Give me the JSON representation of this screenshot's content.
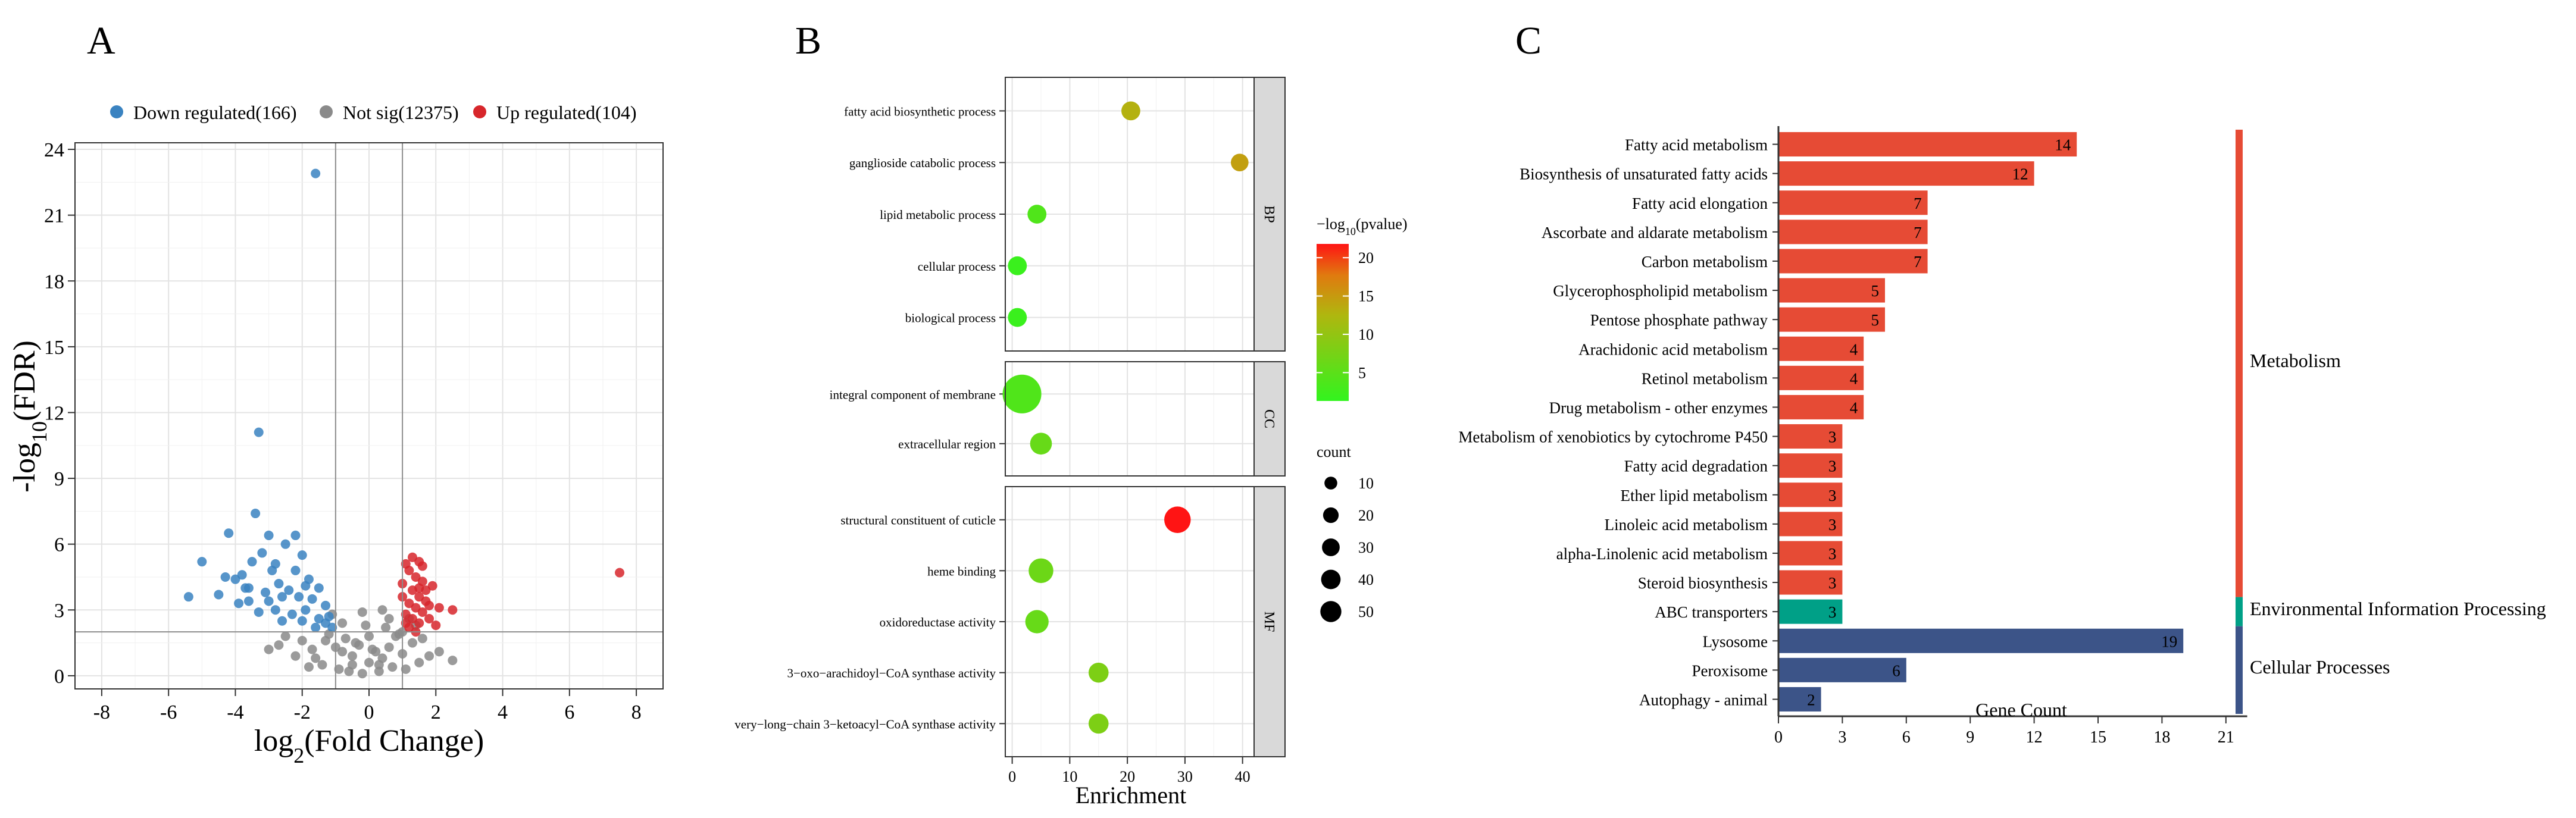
{
  "panels": {
    "A": {
      "letter": "A"
    },
    "B": {
      "letter": "B"
    },
    "C": {
      "letter": "C"
    }
  },
  "chart_data": [
    {
      "type": "scatter",
      "title": "",
      "xlabel_main": "log",
      "xlabel_sub": "2",
      "xlabel_rest": "(Fold Change)",
      "ylabel_main": "-log",
      "ylabel_sub": "10",
      "ylabel_rest": "(FDR)",
      "xlim": [
        -8.8,
        8.8
      ],
      "ylim": [
        -0.6,
        24.3
      ],
      "xticks": [
        "-8",
        "-6",
        "-4",
        "-2",
        "0",
        "2",
        "4",
        "6",
        "8"
      ],
      "yticks": [
        "0",
        "3",
        "6",
        "9",
        "12",
        "15",
        "18",
        "21",
        "24"
      ],
      "vlines": [
        -1,
        1
      ],
      "hline": 2,
      "grid": true,
      "legend_position": "top",
      "legend": [
        {
          "label": "Down regulated(166)",
          "color": "#3a83c1"
        },
        {
          "label": "Not sig(12375)",
          "color": "#8a8a8a"
        },
        {
          "label": "Up regulated(104)",
          "color": "#d7262b"
        }
      ],
      "series": [
        {
          "name": "Down regulated(166)",
          "color": "#3a83c1",
          "points": [
            [
              -1.6,
              22.9
            ],
            [
              -3.3,
              11.1
            ],
            [
              -3.4,
              7.4
            ],
            [
              -4.2,
              6.5
            ],
            [
              -5.0,
              5.2
            ],
            [
              -5.4,
              3.6
            ],
            [
              -4.3,
              4.5
            ],
            [
              -4.0,
              4.4
            ],
            [
              -3.8,
              4.6
            ],
            [
              -3.6,
              4.0
            ],
            [
              -3.5,
              5.2
            ],
            [
              -3.2,
              5.6
            ],
            [
              -3.0,
              6.4
            ],
            [
              -2.8,
              5.1
            ],
            [
              -2.5,
              6.0
            ],
            [
              -2.2,
              6.4
            ],
            [
              -2.0,
              5.5
            ],
            [
              -1.8,
              4.4
            ],
            [
              -2.7,
              4.2
            ],
            [
              -3.1,
              3.8
            ],
            [
              -3.9,
              3.3
            ],
            [
              -4.5,
              3.7
            ],
            [
              -3.3,
              2.9
            ],
            [
              -3.0,
              3.4
            ],
            [
              -2.6,
              3.6
            ],
            [
              -2.4,
              3.9
            ],
            [
              -2.2,
              4.8
            ],
            [
              -1.9,
              3.0
            ],
            [
              -1.7,
              3.5
            ],
            [
              -1.5,
              4.0
            ],
            [
              -1.3,
              3.2
            ],
            [
              -1.2,
              2.7
            ],
            [
              -1.5,
              2.6
            ],
            [
              -2.0,
              2.5
            ],
            [
              -2.3,
              2.8
            ],
            [
              -2.8,
              3.0
            ],
            [
              -2.1,
              3.6
            ],
            [
              -1.6,
              2.2
            ],
            [
              -1.3,
              2.4
            ],
            [
              -1.1,
              2.2
            ],
            [
              -2.6,
              2.5
            ],
            [
              -3.6,
              3.4
            ],
            [
              -1.9,
              4.1
            ],
            [
              -2.9,
              4.8
            ],
            [
              -3.7,
              4.0
            ]
          ]
        },
        {
          "name": "Not sig(12375)",
          "color": "#8a8a8a",
          "points": [
            [
              -2.5,
              1.8
            ],
            [
              -2.0,
              1.6
            ],
            [
              -1.7,
              1.2
            ],
            [
              -1.3,
              1.6
            ],
            [
              -1.0,
              1.3
            ],
            [
              -0.7,
              1.7
            ],
            [
              -0.5,
              0.9
            ],
            [
              -0.3,
              1.4
            ],
            [
              0.0,
              0.6
            ],
            [
              0.2,
              1.1
            ],
            [
              0.4,
              0.8
            ],
            [
              0.6,
              1.3
            ],
            [
              0.8,
              1.8
            ],
            [
              1.0,
              1.0
            ],
            [
              1.3,
              1.5
            ],
            [
              1.6,
              1.7
            ],
            [
              -1.4,
              0.5
            ],
            [
              -0.9,
              0.3
            ],
            [
              -0.6,
              0.2
            ],
            [
              -0.2,
              0.1
            ],
            [
              0.3,
              0.2
            ],
            [
              0.7,
              0.4
            ],
            [
              1.1,
              0.3
            ],
            [
              1.5,
              0.6
            ],
            [
              -2.2,
              0.9
            ],
            [
              -1.8,
              0.4
            ],
            [
              0.5,
              2.2
            ],
            [
              -0.8,
              2.4
            ],
            [
              1.2,
              2.6
            ],
            [
              -1.2,
              1.9
            ],
            [
              0.9,
              1.9
            ],
            [
              -0.4,
              1.5
            ],
            [
              0.1,
              1.2
            ],
            [
              -3.0,
              1.2
            ],
            [
              2.1,
              1.1
            ],
            [
              -1.6,
              0.8
            ],
            [
              1.8,
              0.9
            ],
            [
              0.0,
              1.8
            ],
            [
              -0.1,
              2.3
            ],
            [
              0.6,
              2.6
            ],
            [
              -0.8,
              1.1
            ],
            [
              0.3,
              0.5
            ],
            [
              -0.5,
              0.5
            ],
            [
              1.0,
              2.0
            ],
            [
              -1.1,
              2.8
            ],
            [
              1.4,
              2.3
            ],
            [
              -2.7,
              1.4
            ],
            [
              2.5,
              0.7
            ],
            [
              -0.2,
              2.9
            ],
            [
              0.4,
              3.0
            ]
          ]
        },
        {
          "name": "Up regulated(104)",
          "color": "#d7262b",
          "points": [
            [
              7.5,
              4.7
            ],
            [
              1.1,
              5.1
            ],
            [
              1.3,
              5.4
            ],
            [
              1.5,
              5.2
            ],
            [
              1.2,
              4.8
            ],
            [
              1.4,
              4.5
            ],
            [
              1.6,
              4.3
            ],
            [
              1.0,
              4.2
            ],
            [
              1.3,
              3.9
            ],
            [
              1.5,
              3.6
            ],
            [
              1.7,
              3.4
            ],
            [
              1.2,
              3.3
            ],
            [
              1.4,
              3.1
            ],
            [
              1.6,
              2.9
            ],
            [
              1.1,
              2.8
            ],
            [
              1.3,
              2.6
            ],
            [
              1.5,
              2.4
            ],
            [
              1.8,
              2.6
            ],
            [
              2.1,
              3.1
            ],
            [
              2.5,
              3.0
            ],
            [
              1.2,
              2.2
            ],
            [
              1.0,
              3.6
            ],
            [
              1.7,
              3.9
            ],
            [
              1.9,
              4.1
            ],
            [
              1.6,
              5.0
            ],
            [
              2.0,
              2.3
            ],
            [
              1.1,
              2.4
            ],
            [
              1.4,
              2.0
            ],
            [
              1.8,
              3.2
            ],
            [
              1.5,
              4.0
            ]
          ]
        }
      ]
    },
    {
      "type": "scatter",
      "title": "",
      "xlabel": "Enrichment",
      "xticks": [
        "0",
        "10",
        "20",
        "30",
        "40"
      ],
      "xlim": [
        -1.2,
        42
      ],
      "grid": true,
      "color_legend": {
        "title_main": "−log",
        "title_sub": "10",
        "title_rest": "(pvalue)",
        "ticks": [
          "5",
          "10",
          "15",
          "20"
        ],
        "range": [
          1.3,
          21.8
        ]
      },
      "size_legend": {
        "title": "count",
        "values": [
          "10",
          "20",
          "30",
          "40",
          "50"
        ]
      },
      "facets": [
        {
          "label": "BP",
          "terms": [
            {
              "term": "fatty acid biosynthetic process",
              "enrichment": 20.6,
              "pvalue_log": 13.0,
              "count": 3
            },
            {
              "term": "ganglioside catabolic process",
              "enrichment": 39.5,
              "pvalue_log": 14.5,
              "count": 2
            },
            {
              "term": "lipid metabolic process",
              "enrichment": 4.3,
              "pvalue_log": 4.0,
              "count": 3
            },
            {
              "term": "cellular process",
              "enrichment": 0.9,
              "pvalue_log": 2.0,
              "count": 3
            },
            {
              "term": "biological process",
              "enrichment": 0.9,
              "pvalue_log": 2.0,
              "count": 3
            }
          ]
        },
        {
          "label": "CC",
          "terms": [
            {
              "term": "integral component of membrane",
              "enrichment": 1.7,
              "pvalue_log": 4.0,
              "count": 44
            },
            {
              "term": "extracellular region",
              "enrichment": 5.0,
              "pvalue_log": 6.0,
              "count": 6
            }
          ]
        },
        {
          "label": "MF",
          "terms": [
            {
              "term": "structural constituent of cuticle",
              "enrichment": 28.7,
              "pvalue_log": 21.8,
              "count": 13
            },
            {
              "term": "heme binding",
              "enrichment": 5.0,
              "pvalue_log": 6.5,
              "count": 10
            },
            {
              "term": "oxidoreductase activity",
              "enrichment": 4.3,
              "pvalue_log": 6.0,
              "count": 8
            },
            {
              "term": "3−oxo−arachidoyl−CoA synthase activity",
              "enrichment": 15.0,
              "pvalue_log": 8.0,
              "count": 4
            },
            {
              "term": "very−long−chain 3−ketoacyl−CoA synthase activity",
              "enrichment": 15.0,
              "pvalue_log": 8.0,
              "count": 4
            }
          ]
        }
      ]
    },
    {
      "type": "bar",
      "orientation": "horizontal",
      "title": "",
      "xlabel": "Gene Count",
      "xticks": [
        "0",
        "3",
        "6",
        "9",
        "12",
        "15",
        "18",
        "21"
      ],
      "xlim": [
        0,
        22
      ],
      "grid": false,
      "categories": [
        "Fatty acid metabolism",
        "Biosynthesis of unsaturated fatty acids",
        "Fatty acid elongation",
        "Ascorbate and aldarate metabolism",
        "Carbon metabolism",
        "Glycerophospholipid metabolism",
        "Pentose phosphate pathway",
        "Arachidonic acid metabolism",
        "Retinol metabolism",
        "Drug metabolism - other enzymes",
        "Metabolism of xenobiotics by cytochrome P450",
        "Fatty acid degradation",
        "Ether lipid metabolism",
        "Linoleic acid metabolism",
        "alpha-Linolenic acid metabolism",
        "Steroid biosynthesis",
        "ABC transporters",
        "Lysosome",
        "Peroxisome",
        "Autophagy - animal"
      ],
      "values": [
        14,
        12,
        7,
        7,
        7,
        5,
        5,
        4,
        4,
        4,
        3,
        3,
        3,
        3,
        3,
        3,
        3,
        19,
        6,
        2
      ],
      "value_labels": [
        "14",
        "12",
        "7",
        "7",
        "7",
        "5",
        "5",
        "4",
        "4",
        "4",
        "3",
        "3",
        "3",
        "3",
        "3",
        "3",
        "3",
        "19",
        "6",
        "2"
      ],
      "groups": [
        {
          "label": "Metabolism",
          "color": "#e64b35",
          "count": 16
        },
        {
          "label": "Environmental Information Processing",
          "color": "#00a087",
          "count": 1
        },
        {
          "label": "Cellular Processes",
          "color": "#3c5488",
          "count": 3
        }
      ]
    }
  ]
}
